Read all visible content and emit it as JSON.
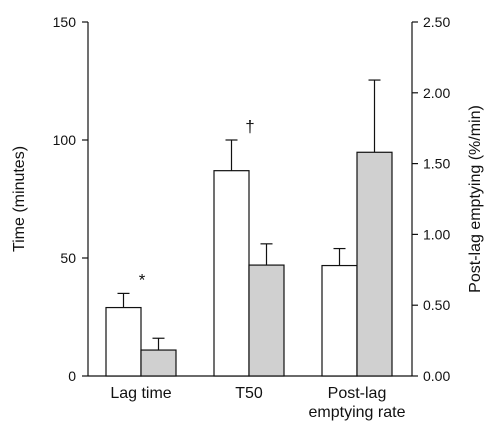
{
  "chart_data": {
    "type": "bar",
    "categories": [
      {
        "lines": [
          "Lag time"
        ]
      },
      {
        "lines": [
          "T50"
        ]
      },
      {
        "lines": [
          "Post-lag",
          "emptying rate"
        ]
      }
    ],
    "y_left": {
      "label": "Time (minutes)",
      "range": [
        0,
        150
      ],
      "ticks": [
        0,
        50,
        100,
        150
      ],
      "tick_labels": [
        "0",
        "50",
        "100",
        "150"
      ]
    },
    "y_right": {
      "label": "Post-lag emptying (%/min)",
      "range": [
        0,
        2.5
      ],
      "ticks": [
        0,
        0.5,
        1.0,
        1.5,
        2.0,
        2.5
      ],
      "tick_labels": [
        "0.00",
        "0.50",
        "1.00",
        "1.50",
        "2.00",
        "2.50"
      ]
    },
    "series": [
      {
        "color": "#ffffff",
        "points": [
          {
            "axis": "left",
            "value": 29,
            "error": 6
          },
          {
            "axis": "left",
            "value": 87,
            "error": 13
          },
          {
            "axis": "right",
            "value": 0.78,
            "error": 0.12
          }
        ]
      },
      {
        "color": "#d0d0d0",
        "points": [
          {
            "axis": "left",
            "value": 11,
            "error": 5
          },
          {
            "axis": "left",
            "value": 47,
            "error": 9
          },
          {
            "axis": "right",
            "value": 1.58,
            "error": 0.51
          }
        ]
      }
    ],
    "annotations": [
      {
        "category": 0,
        "text": "*"
      },
      {
        "category": 1,
        "text": "†"
      }
    ],
    "grid": false,
    "legend": "none"
  }
}
